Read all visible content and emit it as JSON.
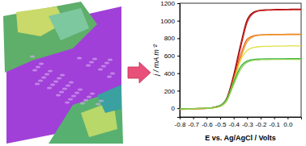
{
  "chart_data": {
    "type": "line",
    "x_label": "E vs. Ag/AgCl / Volts",
    "y_label": "j / mA m⁻²",
    "x": [
      -0.8,
      -0.75,
      -0.7,
      -0.65,
      -0.6,
      -0.55,
      -0.5,
      -0.45,
      -0.4,
      -0.35,
      -0.3,
      -0.25,
      -0.2,
      -0.15,
      -0.1,
      -0.05,
      0,
      0.05,
      0.1
    ],
    "series": [
      {
        "color": "#8b0000",
        "values": [
          -10,
          -8,
          -5,
          -3,
          0,
          10,
          30,
          120,
          380,
          720,
          1010,
          1100,
          1120,
          1125,
          1128,
          1130,
          1130,
          1132,
          1132
        ]
      },
      {
        "color": "#d42020",
        "values": [
          -12,
          -10,
          -6,
          -4,
          -2,
          8,
          25,
          100,
          340,
          680,
          980,
          1090,
          1115,
          1120,
          1122,
          1124,
          1125,
          1126,
          1126
        ]
      },
      {
        "color": "#e8601c",
        "values": [
          -15,
          -12,
          -8,
          -5,
          -2,
          8,
          28,
          110,
          330,
          600,
          790,
          830,
          840,
          842,
          843,
          844,
          845,
          845,
          845
        ]
      },
      {
        "color": "#f0a030",
        "values": [
          -12,
          -10,
          -7,
          -5,
          -2,
          5,
          20,
          90,
          300,
          560,
          760,
          820,
          835,
          838,
          840,
          840,
          841,
          841,
          841
        ]
      },
      {
        "color": "#e0e040",
        "values": [
          -10,
          -8,
          -5,
          -3,
          -1,
          6,
          25,
          100,
          310,
          540,
          660,
          695,
          705,
          708,
          710,
          710,
          712,
          712,
          712
        ]
      },
      {
        "color": "#30b040",
        "values": [
          -8,
          -6,
          -4,
          -2,
          0,
          8,
          30,
          110,
          300,
          470,
          540,
          558,
          562,
          564,
          565,
          565,
          566,
          566,
          566
        ]
      },
      {
        "color": "#90d050",
        "values": [
          -9,
          -7,
          -5,
          -3,
          -1,
          5,
          22,
          90,
          270,
          440,
          525,
          548,
          555,
          557,
          558,
          558,
          559,
          559,
          559
        ]
      }
    ],
    "xlim": [
      -0.8,
      0.1
    ],
    "xticks": [
      -0.8,
      -0.7,
      -0.6,
      -0.5,
      -0.4,
      -0.3,
      -0.2,
      -0.1,
      {
        "value": 0,
        "label": "0.0"
      }
    ],
    "ylim": [
      -100,
      1200
    ],
    "yticks": [
      0,
      200,
      400,
      600,
      800,
      1000,
      1200
    ],
    "grid": false
  }
}
